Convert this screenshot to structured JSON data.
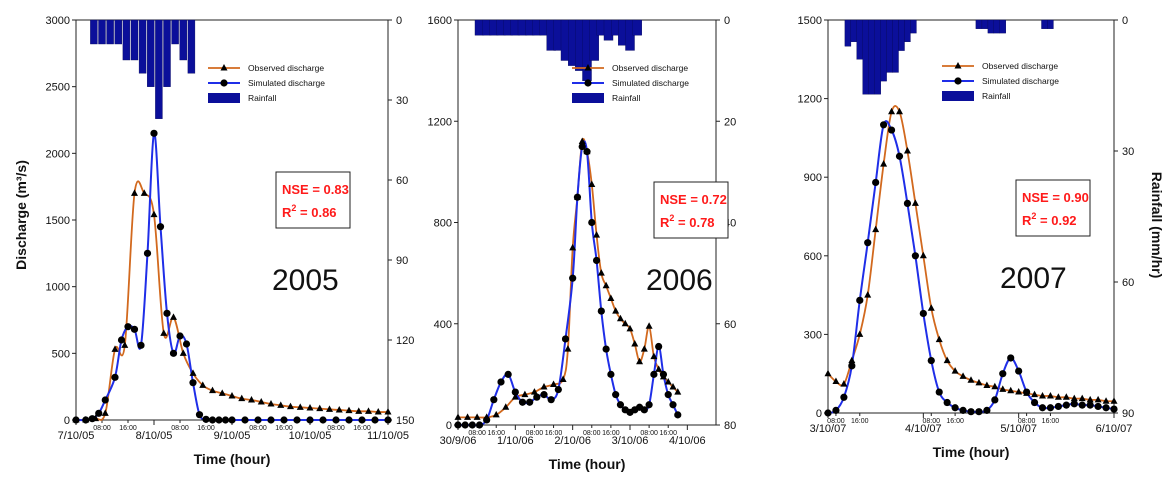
{
  "colors": {
    "observed": "#d2691e",
    "simulated": "#1f2ee8",
    "rainfall": "#0b0f9a",
    "stats": "#ff1a1a"
  },
  "shared": {
    "ylabel_left": "Discharge (m³/s)",
    "ylabel_right": "Rainfall (mm/hr)",
    "xlabel": "Time (hour)",
    "legend": [
      "Observed discharge",
      "Simulated discharge",
      "Rainfall"
    ]
  },
  "chart_data": [
    {
      "type": "line",
      "year_label": "2005",
      "nse": "NSE = 0.83",
      "r2_prefix": "R",
      "r2_sup": "2",
      "r2_value": " = 0.86",
      "xlabel": "Time (hour)",
      "ylabel": "Discharge (m³/s)",
      "ylabel_right": "",
      "ylim": [
        0,
        3000
      ],
      "yticks": [
        "0",
        "500",
        "1000",
        "1500",
        "2000",
        "2500",
        "3000"
      ],
      "rain_lim": [
        0,
        150
      ],
      "rain_ticks": [
        "0",
        "30",
        "60",
        "90",
        "120",
        "150"
      ],
      "x_range": [
        0,
        96
      ],
      "date_ticks": [
        {
          "t": 0,
          "label": "7/10/05"
        },
        {
          "t": 24,
          "label": "8/10/05"
        },
        {
          "t": 48,
          "label": "9/10/05"
        },
        {
          "t": 72,
          "label": "10/10/05"
        },
        {
          "t": 96,
          "label": "11/10/05"
        }
      ],
      "hour_ticks": [
        {
          "t": 8,
          "label": "08:00"
        },
        {
          "t": 16,
          "label": "16:00"
        },
        {
          "t": 32,
          "label": "08:00"
        },
        {
          "t": 40,
          "label": "16:00"
        },
        {
          "t": 56,
          "label": "08:00"
        },
        {
          "t": 64,
          "label": "16:00"
        },
        {
          "t": 80,
          "label": "08:00"
        },
        {
          "t": 88,
          "label": "16:00"
        }
      ],
      "series": [
        {
          "name": "Observed discharge",
          "x": [
            0,
            3,
            6,
            9,
            12,
            15,
            18,
            21,
            24,
            27,
            30,
            33,
            36,
            39,
            42,
            45,
            48,
            51,
            54,
            57,
            60,
            63,
            66,
            69,
            72,
            75,
            78,
            81,
            84,
            87,
            90,
            93,
            96
          ],
          "values": [
            0,
            0,
            10,
            50,
            530,
            560,
            1700,
            1700,
            1540,
            650,
            770,
            500,
            350,
            260,
            220,
            200,
            180,
            160,
            150,
            135,
            120,
            110,
            100,
            95,
            90,
            85,
            80,
            75,
            70,
            65,
            65,
            60,
            60
          ]
        },
        {
          "name": "Simulated discharge",
          "x": [
            0,
            3,
            5,
            7,
            9,
            12,
            14,
            16,
            18,
            20,
            22,
            24,
            26,
            28,
            30,
            32,
            34,
            36,
            38,
            40,
            42,
            44,
            46,
            48,
            52,
            56,
            60,
            64,
            68,
            72,
            76,
            80,
            84,
            88,
            92,
            96
          ],
          "values": [
            0,
            0,
            10,
            50,
            150,
            320,
            600,
            700,
            680,
            560,
            1250,
            2150,
            1450,
            800,
            500,
            630,
            570,
            280,
            40,
            5,
            0,
            0,
            0,
            0,
            0,
            0,
            0,
            0,
            0,
            0,
            0,
            0,
            0,
            0,
            0,
            0
          ]
        }
      ],
      "rainfall": {
        "x": [
          5.5,
          8,
          10.5,
          13,
          15.5,
          18,
          20.5,
          23,
          25.5,
          28,
          30.5,
          33,
          35.5
        ],
        "values": [
          9,
          9,
          9,
          9,
          15,
          15,
          20,
          25,
          37,
          25,
          9,
          15,
          20
        ]
      }
    },
    {
      "type": "line",
      "year_label": "2006",
      "nse": "NSE = 0.72",
      "r2_prefix": "R",
      "r2_sup": "2",
      "r2_value": " = 0.78",
      "xlabel": "Time (hour)",
      "ylabel": "",
      "ylabel_right": "",
      "ylim": [
        0,
        1600
      ],
      "yticks": [
        "0",
        "400",
        "800",
        "1200",
        "1600"
      ],
      "rain_lim": [
        0,
        80
      ],
      "rain_ticks": [
        "0",
        "20",
        "40",
        "60",
        "80"
      ],
      "x_range": [
        0,
        108
      ],
      "date_ticks": [
        {
          "t": 0,
          "label": "30/9/06"
        },
        {
          "t": 24,
          "label": "1/10/06"
        },
        {
          "t": 48,
          "label": "2/10/06"
        },
        {
          "t": 72,
          "label": "3/10/06"
        },
        {
          "t": 96,
          "label": "4/10/06"
        }
      ],
      "hour_ticks": [
        {
          "t": 8,
          "label": "08:00"
        },
        {
          "t": 16,
          "label": "16:00"
        },
        {
          "t": 32,
          "label": "08:00"
        },
        {
          "t": 40,
          "label": "16:00"
        },
        {
          "t": 56,
          "label": "08:00"
        },
        {
          "t": 64,
          "label": "16:00"
        },
        {
          "t": 80,
          "label": "08:00"
        },
        {
          "t": 88,
          "label": "16:00"
        }
      ],
      "series": [
        {
          "name": "Observed discharge",
          "x": [
            0,
            4,
            8,
            12,
            16,
            20,
            24,
            28,
            32,
            36,
            40,
            44,
            46,
            48,
            50,
            52,
            54,
            56,
            58,
            60,
            62,
            64,
            66,
            68,
            70,
            72,
            74,
            76,
            78,
            80,
            82,
            84,
            86,
            88,
            90,
            92
          ],
          "values": [
            30,
            30,
            30,
            30,
            40,
            70,
            110,
            120,
            130,
            150,
            160,
            180,
            300,
            700,
            900,
            1120,
            1080,
            950,
            750,
            600,
            550,
            500,
            450,
            420,
            400,
            380,
            320,
            250,
            300,
            390,
            270,
            220,
            190,
            170,
            150,
            130
          ]
        },
        {
          "name": "Simulated discharge",
          "x": [
            0,
            3,
            6,
            9,
            12,
            15,
            18,
            21,
            24,
            27,
            30,
            33,
            36,
            39,
            42,
            45,
            48,
            50,
            52,
            54,
            56,
            58,
            60,
            62,
            64,
            66,
            68,
            70,
            72,
            74,
            76,
            78,
            80,
            82,
            84,
            86,
            88,
            90,
            92
          ],
          "values": [
            0,
            0,
            0,
            0,
            20,
            100,
            170,
            200,
            130,
            90,
            90,
            110,
            120,
            100,
            140,
            340,
            580,
            900,
            1100,
            1080,
            800,
            650,
            450,
            300,
            200,
            120,
            80,
            60,
            50,
            60,
            70,
            60,
            80,
            200,
            310,
            200,
            120,
            80,
            40
          ]
        }
      ],
      "rainfall": {
        "x": [
          9,
          12,
          15,
          18,
          21,
          24,
          27,
          30,
          33,
          36,
          39,
          42,
          45,
          48,
          51,
          54,
          57,
          60,
          63,
          66,
          69,
          72,
          75
        ],
        "values": [
          3,
          3,
          3,
          3,
          3,
          3,
          3,
          3,
          3,
          3,
          6,
          6,
          8,
          9,
          10,
          12,
          8,
          3,
          4,
          3,
          5,
          6,
          3
        ]
      }
    },
    {
      "type": "line",
      "year_label": "2007",
      "nse": "NSE = 0.90",
      "r2_prefix": "R",
      "r2_sup": "2",
      "r2_value": " = 0.92",
      "xlabel": "Time (hour)",
      "ylabel": "",
      "ylabel_right": "Rainfall (mm/hr)",
      "ylim": [
        0,
        1500
      ],
      "yticks": [
        "0",
        "300",
        "600",
        "900",
        "1200",
        "1500"
      ],
      "rain_lim": [
        0,
        90
      ],
      "rain_ticks": [
        "0",
        "30",
        "60",
        "90"
      ],
      "x_range": [
        0,
        72
      ],
      "date_ticks": [
        {
          "t": 0,
          "label": "3/10/07"
        },
        {
          "t": 24,
          "label": "4/10/07"
        },
        {
          "t": 48,
          "label": "5/10/07"
        },
        {
          "t": 72,
          "label": "6/10/07"
        }
      ],
      "hour_ticks": [
        {
          "t": 2,
          "label": "08:00"
        },
        {
          "t": 8,
          "label": "16:00"
        },
        {
          "t": 26,
          "label": "08:00"
        },
        {
          "t": 32,
          "label": "16:00"
        },
        {
          "t": 50,
          "label": "08:00"
        },
        {
          "t": 56,
          "label": "16:00"
        }
      ],
      "series": [
        {
          "name": "Observed discharge",
          "x": [
            0,
            2,
            4,
            6,
            8,
            10,
            12,
            14,
            16,
            18,
            20,
            22,
            24,
            26,
            28,
            30,
            32,
            34,
            36,
            38,
            40,
            42,
            44,
            46,
            48,
            50,
            52,
            54,
            56,
            58,
            60,
            62,
            64,
            66,
            68,
            70,
            72
          ],
          "values": [
            150,
            120,
            110,
            200,
            300,
            450,
            700,
            950,
            1150,
            1150,
            1000,
            800,
            600,
            400,
            280,
            200,
            160,
            140,
            125,
            115,
            105,
            100,
            90,
            85,
            80,
            75,
            70,
            65,
            65,
            60,
            60,
            55,
            55,
            50,
            50,
            45,
            45
          ]
        },
        {
          "name": "Simulated discharge",
          "x": [
            0,
            2,
            4,
            6,
            8,
            10,
            12,
            14,
            16,
            18,
            20,
            22,
            24,
            26,
            28,
            30,
            32,
            34,
            36,
            38,
            40,
            42,
            44,
            46,
            48,
            50,
            52,
            54,
            56,
            58,
            60,
            62,
            64,
            66,
            68,
            70,
            72
          ],
          "values": [
            0,
            10,
            60,
            180,
            430,
            650,
            880,
            1100,
            1080,
            980,
            800,
            600,
            380,
            200,
            80,
            40,
            20,
            10,
            5,
            5,
            10,
            50,
            150,
            210,
            160,
            80,
            40,
            20,
            20,
            25,
            30,
            35,
            30,
            30,
            25,
            20,
            15
          ]
        }
      ],
      "rainfall": {
        "x": [
          5,
          6.5,
          8,
          9.5,
          11,
          12.5,
          14,
          15.5,
          17,
          18.5,
          20,
          21.5,
          38,
          39.5,
          41,
          42.5,
          44,
          54.5,
          56
        ],
        "values": [
          6,
          5,
          9,
          17,
          17,
          17,
          14,
          12,
          12,
          7,
          5,
          3,
          2,
          2,
          3,
          3,
          3,
          2,
          2
        ]
      }
    }
  ]
}
